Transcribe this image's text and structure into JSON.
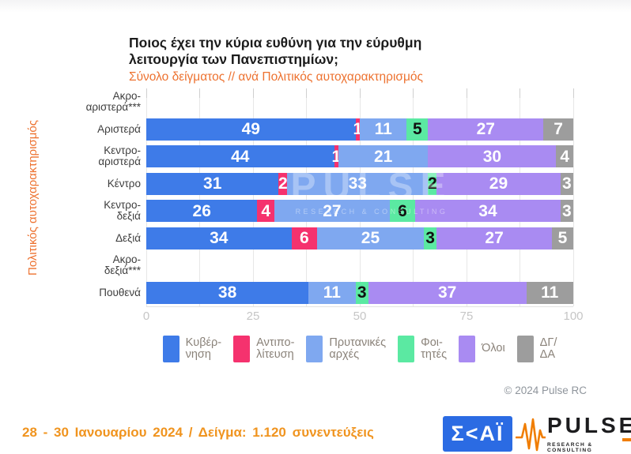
{
  "header": {
    "title": "Ποιος έχει την κύρια ευθύνη για την εύρυθμη\nλειτουργία των Πανεπιστημίων;",
    "subtitle": "Σύνολο δείγματος // ανά Πολιτικός αυτοχαρακτηρισμός"
  },
  "chart_data": {
    "type": "bar",
    "variant": "horizontal-stacked",
    "title": "Ποιος έχει την κύρια ευθύνη για την εύρυθμη λειτουργία των Πανεπιστημίων;",
    "subtitle": "Σύνολο δείγματος // ανά Πολιτικός αυτοχαρακτηρισμός",
    "y_axis_label": "Πολιτικός αυτοχαρακτηρισμός",
    "xlim": [
      0,
      100
    ],
    "x_ticks": [
      "0",
      "25",
      "50",
      "75",
      "100"
    ],
    "grid_step": 12.5,
    "categories": [
      "Ακρο-\nαριστερά***",
      "Αριστερά",
      "Κεντρο-\nαριστερά",
      "Κέντρο",
      "Κεντρο-\nδεξιά",
      "Δεξιά",
      "Ακρο-\nδεξιά***",
      "Πουθενά"
    ],
    "series": [
      {
        "name": "Κυβέρνηση",
        "color": "#3e7be8",
        "label_color": "#ffffff",
        "values": [
          0,
          49,
          44,
          31,
          26,
          34,
          0,
          38
        ]
      },
      {
        "name": "Αντιπολίτευση",
        "color": "#f5326e",
        "label_color": "#ffffff",
        "values": [
          0,
          1,
          1,
          2,
          4,
          6,
          0,
          0
        ]
      },
      {
        "name": "Πρυτανικές αρχές",
        "color": "#7fa8f0",
        "label_color": "#ffffff",
        "values": [
          0,
          11,
          21,
          33,
          27,
          25,
          0,
          11
        ]
      },
      {
        "name": "Φοιτητές",
        "color": "#5be9a2",
        "label_color": "#111111",
        "values": [
          0,
          5,
          0,
          2,
          6,
          3,
          0,
          3
        ]
      },
      {
        "name": "Όλοι",
        "color": "#a98bf2",
        "label_color": "#ffffff",
        "values": [
          0,
          27,
          30,
          29,
          34,
          27,
          0,
          37
        ]
      },
      {
        "name": "ΔΓ/ΔΑ",
        "color": "#9d9d9d",
        "label_color": "#ffffff",
        "values": [
          0,
          7,
          4,
          3,
          3,
          5,
          0,
          11
        ]
      }
    ],
    "legend_position": "bottom",
    "grid": true
  },
  "legend": {
    "items": [
      {
        "label": "Κυβέρ-\nνηση",
        "color": "#3e7be8"
      },
      {
        "label": "Αντιπο-\nλίτευση",
        "color": "#f5326e"
      },
      {
        "label": "Πρυτανικές\nαρχές",
        "color": "#7fa8f0"
      },
      {
        "label": "Φοι-\nτητές",
        "color": "#5be9a2"
      },
      {
        "label": "Όλοι",
        "color": "#a98bf2"
      },
      {
        "label": "ΔΓ/\nΔΑ",
        "color": "#9d9d9d"
      }
    ]
  },
  "watermark": {
    "line1": "PULSE",
    "line2": "RESEARCH & CONSULTING"
  },
  "copyright": "© 2024 Pulse RC",
  "footer": {
    "fieldwork": "28 - 30 Ιανουαρίου 2024 / Δείγμα: 1.120 συνεντεύξεις"
  },
  "logos": {
    "skai": "Σ<ΑΪ",
    "pulse_name": "PULSE",
    "pulse_tagline": "RESEARCH & CONSULTING"
  },
  "colors": {
    "accent_orange": "#ed7230",
    "footer_orange": "#f0941f",
    "skai_blue": "#2b6be3",
    "pulse_orange": "#f07d00"
  }
}
